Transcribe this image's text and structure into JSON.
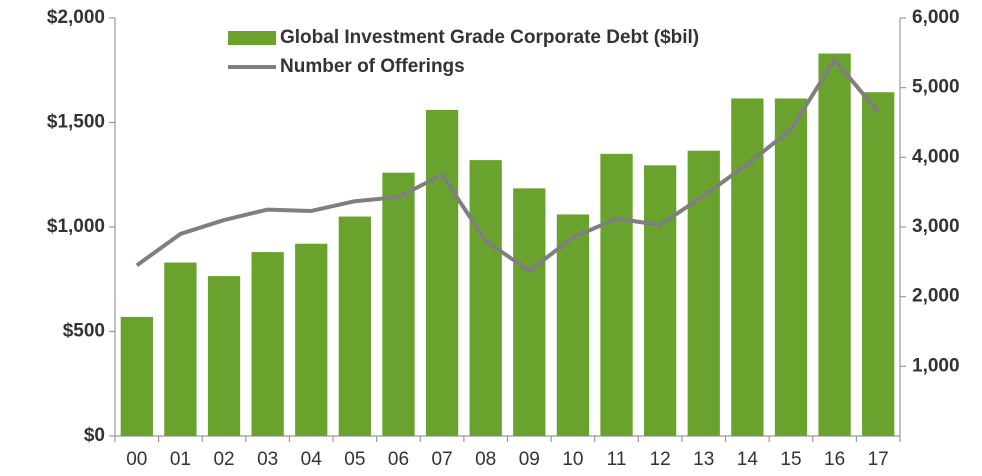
{
  "chart_data": {
    "type": "bar-line",
    "categories": [
      "00",
      "01",
      "02",
      "03",
      "04",
      "05",
      "06",
      "07",
      "08",
      "09",
      "10",
      "11",
      "12",
      "13",
      "14",
      "15",
      "16",
      "17"
    ],
    "series": [
      {
        "name": "Global Investment Grade Corporate Debt ($bil)",
        "color": "#6aa22e",
        "type": "bar",
        "axis": "y",
        "values": [
          570,
          830,
          765,
          880,
          920,
          1050,
          1260,
          1560,
          1320,
          1185,
          1060,
          1350,
          1295,
          1365,
          1615,
          1615,
          1830,
          1645
        ]
      },
      {
        "name": "Number of Offerings",
        "color": "#7f7f7f",
        "type": "line",
        "axis": "y2",
        "values": [
          2450,
          2900,
          3100,
          3250,
          3230,
          3370,
          3430,
          3750,
          2800,
          2370,
          2850,
          3120,
          3030,
          3450,
          3900,
          4400,
          5400,
          4650
        ]
      }
    ],
    "ylim": [
      0,
      2000
    ],
    "yticks": [
      {
        "value": 0,
        "label": "$0"
      },
      {
        "value": 500,
        "label": "$500"
      },
      {
        "value": 1000,
        "label": "$1,000"
      },
      {
        "value": 1500,
        "label": "$1,500"
      },
      {
        "value": 2000,
        "label": "$2,000"
      }
    ],
    "y2lim": [
      0,
      6000
    ],
    "y2ticks": [
      {
        "value": 1000,
        "label": "1,000"
      },
      {
        "value": 2000,
        "label": "2,000"
      },
      {
        "value": 3000,
        "label": "3,000"
      },
      {
        "value": 4000,
        "label": "4,000"
      },
      {
        "value": 5000,
        "label": "5,000"
      },
      {
        "value": 6000,
        "label": "6,000"
      }
    ],
    "grid": false,
    "legend": "top"
  }
}
